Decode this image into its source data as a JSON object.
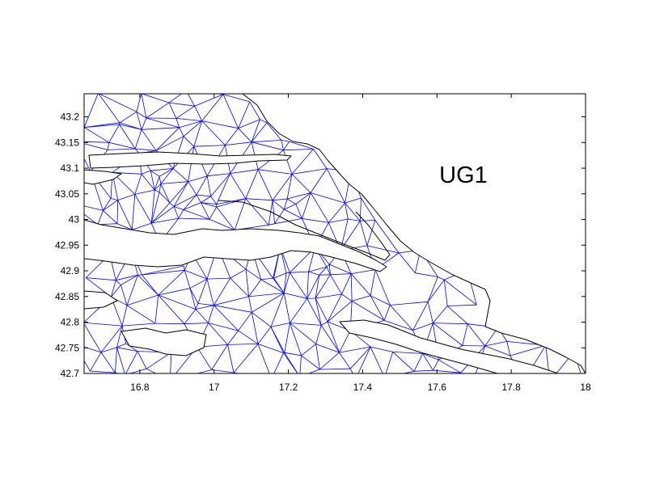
{
  "colors": {
    "background": "#ffffff",
    "axes": "#000000",
    "mesh": "#0000ff",
    "coastline": "#000000"
  },
  "map": {
    "panel_label": "UG1"
  },
  "chart_data": {
    "type": "map",
    "title": "",
    "xlabel": "",
    "ylabel": "",
    "xlim": [
      16.65,
      18.0
    ],
    "ylim": [
      42.7,
      43.245
    ],
    "grid": false,
    "xticks": [
      16.8,
      17.0,
      17.2,
      17.4,
      17.6,
      17.8,
      18.0
    ],
    "xtick_labels": [
      "16.8",
      "17",
      "17.2",
      "17.4",
      "17.6",
      "17.8",
      "18"
    ],
    "yticks": [
      42.7,
      42.75,
      42.8,
      42.85,
      42.9,
      42.95,
      43.0,
      43.05,
      43.1,
      43.15,
      43.2
    ],
    "ytick_labels": [
      "42.7",
      "42.75",
      "42.8",
      "42.85",
      "42.9",
      "42.95",
      "43",
      "43.05",
      "43.1",
      "43.15",
      "43.2"
    ]
  }
}
